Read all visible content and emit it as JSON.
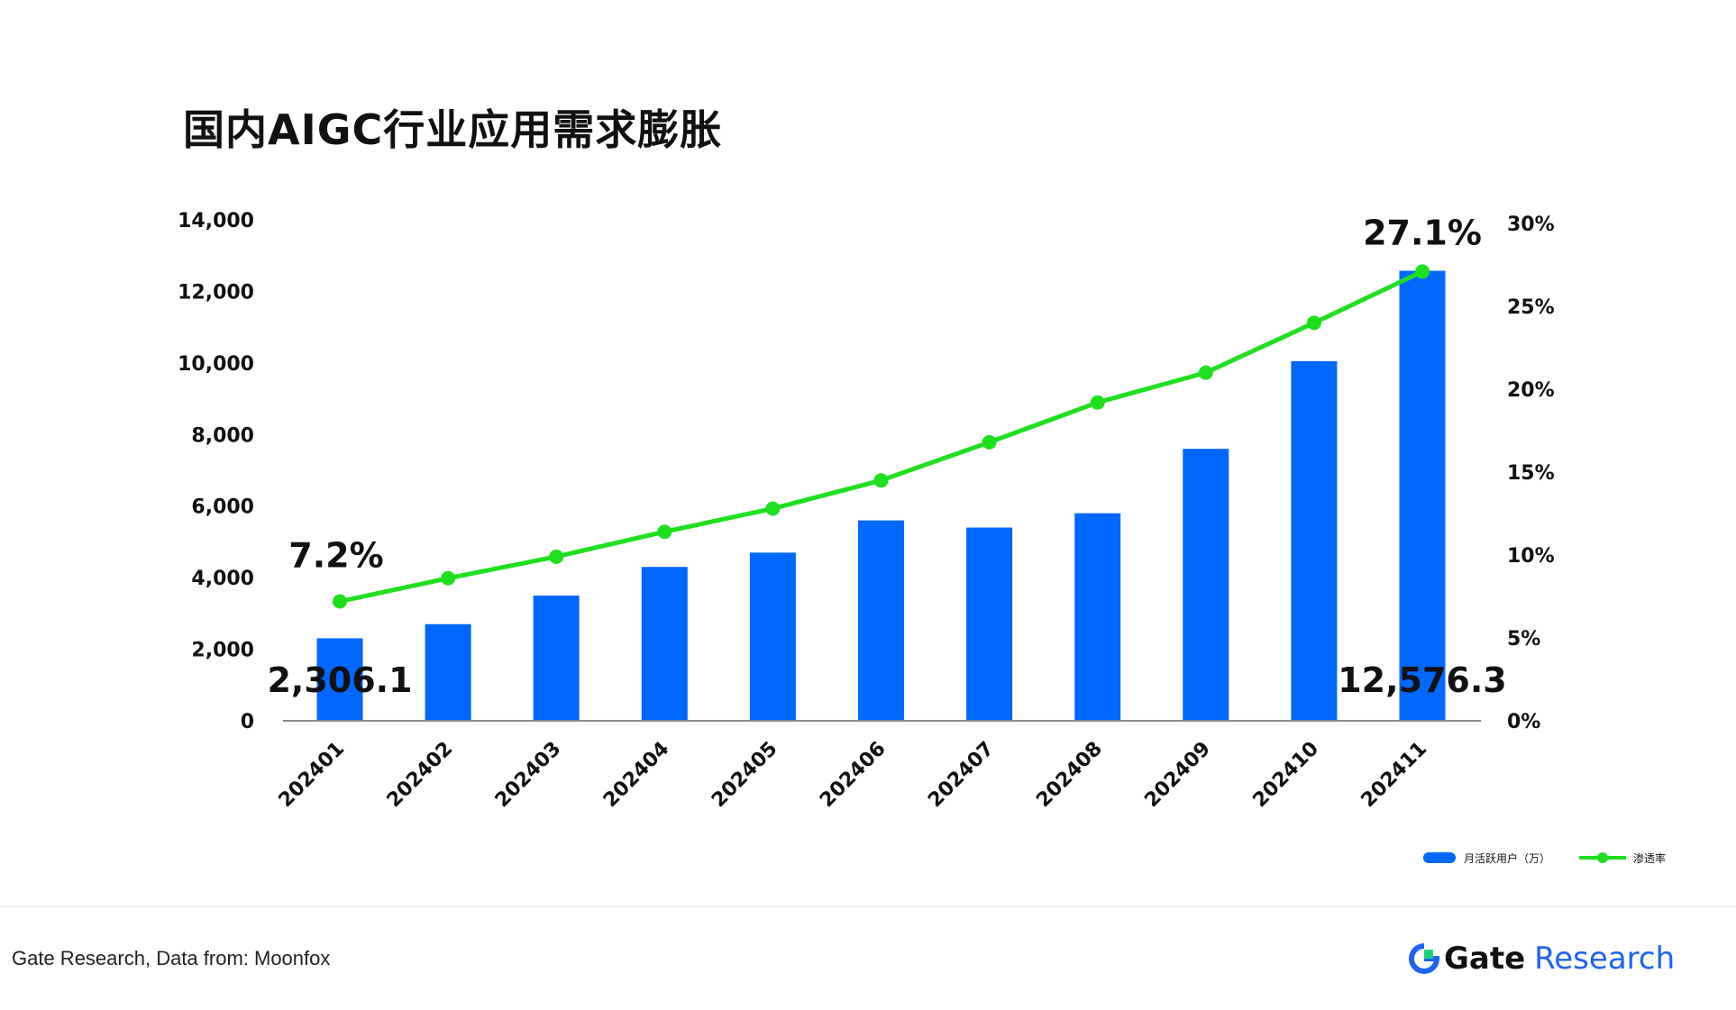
{
  "chart_data": {
    "type": "bar",
    "title": "国内AIGC行业应用需求膨胀",
    "categories": [
      "202401",
      "202402",
      "202403",
      "202404",
      "202405",
      "202406",
      "202407",
      "202408",
      "202409",
      "202410",
      "202411"
    ],
    "series": [
      {
        "name": "月活跃用户（万）",
        "type": "bar",
        "axis": "left",
        "color": "#0068ff",
        "values": [
          2306.1,
          2700,
          3500,
          4300,
          4700,
          5600,
          5400,
          5800,
          7600,
          10050,
          12576.3
        ]
      },
      {
        "name": "渗透率",
        "type": "line",
        "axis": "right",
        "color": "#1fe01f",
        "values": [
          7.2,
          8.6,
          9.9,
          11.4,
          12.8,
          14.5,
          16.8,
          19.2,
          21.0,
          24.0,
          27.1
        ]
      }
    ],
    "y_left": {
      "min": 0,
      "max": 14000,
      "ticks": [
        "0",
        "2,000",
        "4,000",
        "6,000",
        "8,000",
        "10,000",
        "12,000",
        "14,000"
      ]
    },
    "y_right": {
      "min": 0,
      "max": 30,
      "ticks": [
        "0%",
        "5%",
        "10%",
        "15%",
        "20%",
        "25%",
        "30%"
      ]
    },
    "annotations": [
      {
        "text": "7.2%",
        "series": "渗透率",
        "index": 0
      },
      {
        "text": "27.1%",
        "series": "渗透率",
        "index": 10
      },
      {
        "text": "2,306.1",
        "series": "月活跃用户（万）",
        "index": 0
      },
      {
        "text": "12,576.3",
        "series": "月活跃用户（万）",
        "index": 10
      }
    ],
    "legend": {
      "position": "bottom-right"
    },
    "grid": false
  },
  "footer": {
    "source": "Gate Research, Data from: Moonfox",
    "brand_gate": "Gate",
    "brand_research": "Research",
    "logo_icon": "gate-logo-icon"
  }
}
